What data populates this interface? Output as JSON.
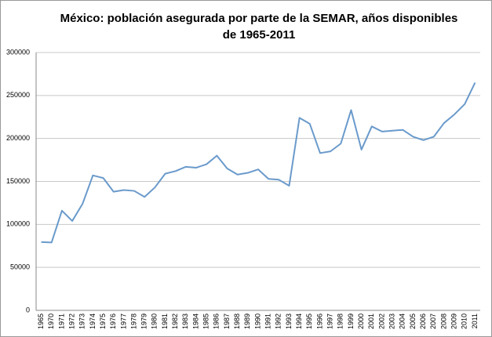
{
  "chart_data": {
    "type": "line",
    "title": [
      "México: población asegurada por parte de la SEMAR, años disponibles",
      "de 1965-2011"
    ],
    "categories": [
      "1965",
      "1970",
      "1971",
      "1972",
      "1973",
      "1974",
      "1975",
      "1976",
      "1977",
      "1978",
      "1979",
      "1980",
      "1981",
      "1982",
      "1983",
      "1984",
      "1985",
      "1986",
      "1987",
      "1988",
      "1989",
      "1990",
      "1991",
      "1992",
      "1993",
      "1994",
      "1995",
      "1996",
      "1997",
      "1998",
      "1999",
      "2000",
      "2001",
      "2002",
      "2003",
      "2004",
      "2005",
      "2006",
      "2007",
      "2008",
      "2009",
      "2010",
      "2011"
    ],
    "values": [
      79500,
      79000,
      116000,
      104000,
      124000,
      157000,
      154000,
      138000,
      140000,
      139000,
      132000,
      143000,
      159000,
      162000,
      167000,
      166000,
      170000,
      180000,
      165000,
      158000,
      160000,
      164000,
      153000,
      152000,
      145000,
      224000,
      217000,
      183000,
      185000,
      194000,
      233000,
      187000,
      214000,
      208000,
      209000,
      210000,
      202000,
      198000,
      202000,
      218000,
      228000,
      240000,
      265000
    ],
    "color": "#6a9acb",
    "ylim": [
      0,
      300000
    ],
    "yticks": [
      0,
      50000,
      100000,
      150000,
      200000,
      250000,
      300000
    ],
    "grid": true
  }
}
